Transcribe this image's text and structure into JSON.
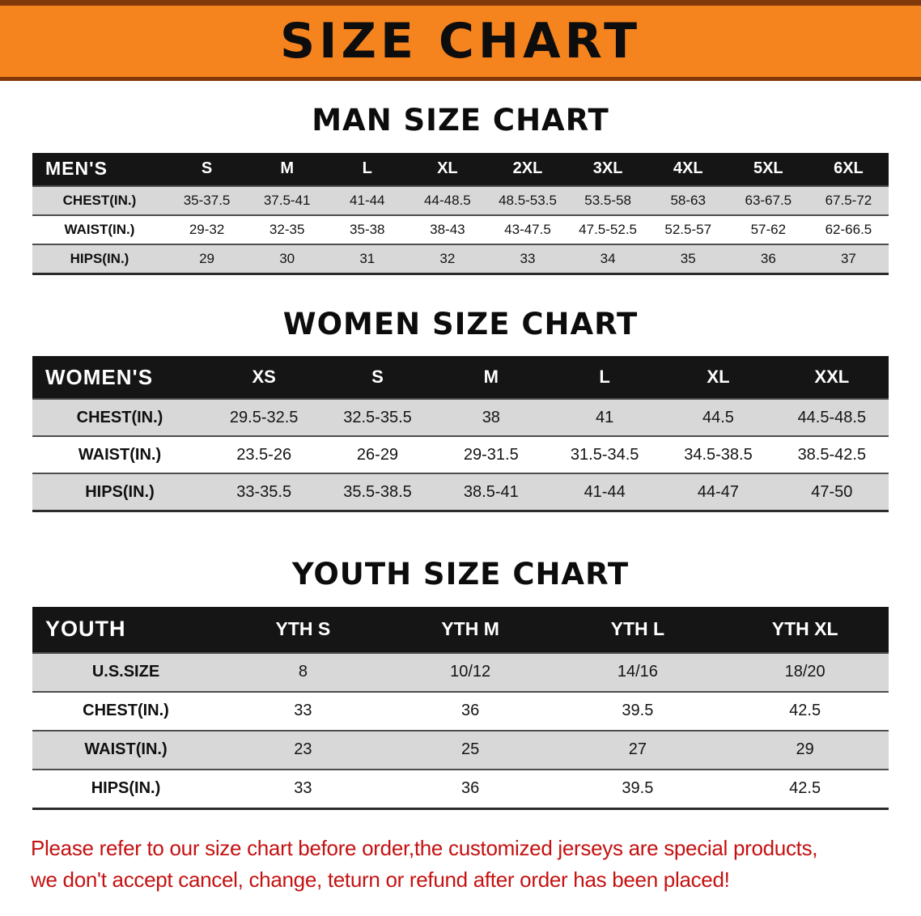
{
  "banner": {
    "title": "SIZE CHART"
  },
  "sections": [
    {
      "heading": "MAN SIZE CHART",
      "table": {
        "header": [
          "MEN'S",
          "S",
          "M",
          "L",
          "XL",
          "2XL",
          "3XL",
          "4XL",
          "5XL",
          "6XL"
        ],
        "rows": [
          [
            "CHEST(IN.)",
            "35-37.5",
            "37.5-41",
            "41-44",
            "44-48.5",
            "48.5-53.5",
            "53.5-58",
            "58-63",
            "63-67.5",
            "67.5-72"
          ],
          [
            "WAIST(IN.)",
            "29-32",
            "32-35",
            "35-38",
            "38-43",
            "43-47.5",
            "47.5-52.5",
            "52.5-57",
            "57-62",
            "62-66.5"
          ],
          [
            "HIPS(IN.)",
            "29",
            "30",
            "31",
            "32",
            "33",
            "34",
            "35",
            "36",
            "37"
          ]
        ]
      }
    },
    {
      "heading": "WOMEN SIZE CHART",
      "table": {
        "header": [
          "WOMEN'S",
          "XS",
          "S",
          "M",
          "L",
          "XL",
          "XXL"
        ],
        "rows": [
          [
            "CHEST(IN.)",
            "29.5-32.5",
            "32.5-35.5",
            "38",
            "41",
            "44.5",
            "44.5-48.5"
          ],
          [
            "WAIST(IN.)",
            "23.5-26",
            "26-29",
            "29-31.5",
            "31.5-34.5",
            "34.5-38.5",
            "38.5-42.5"
          ],
          [
            "HIPS(IN.)",
            "33-35.5",
            "35.5-38.5",
            "38.5-41",
            "41-44",
            "44-47",
            "47-50"
          ]
        ]
      }
    },
    {
      "heading": "YOUTH SIZE CHART",
      "table": {
        "header": [
          "YOUTH",
          "YTH S",
          "YTH M",
          "YTH L",
          "YTH XL"
        ],
        "rows": [
          [
            "U.S.SIZE",
            "8",
            "10/12",
            "14/16",
            "18/20"
          ],
          [
            "CHEST(IN.)",
            "33",
            "36",
            "39.5",
            "42.5"
          ],
          [
            "WAIST(IN.)",
            "23",
            "25",
            "27",
            "29"
          ],
          [
            "HIPS(IN.)",
            "33",
            "36",
            "39.5",
            "42.5"
          ]
        ]
      }
    }
  ],
  "disclaimer": {
    "line1": "Please refer to our size chart before order,the customized jerseys are special products,",
    "line2": "we don't accept cancel, change, teturn or refund after order has been placed!"
  },
  "colors": {
    "banner_orange": "#F5831E",
    "banner_edge_brown": "#82390A",
    "table_header_black": "#151515",
    "row_stripe_gray": "#D8D8D8",
    "disclaimer_red": "#C51111"
  }
}
